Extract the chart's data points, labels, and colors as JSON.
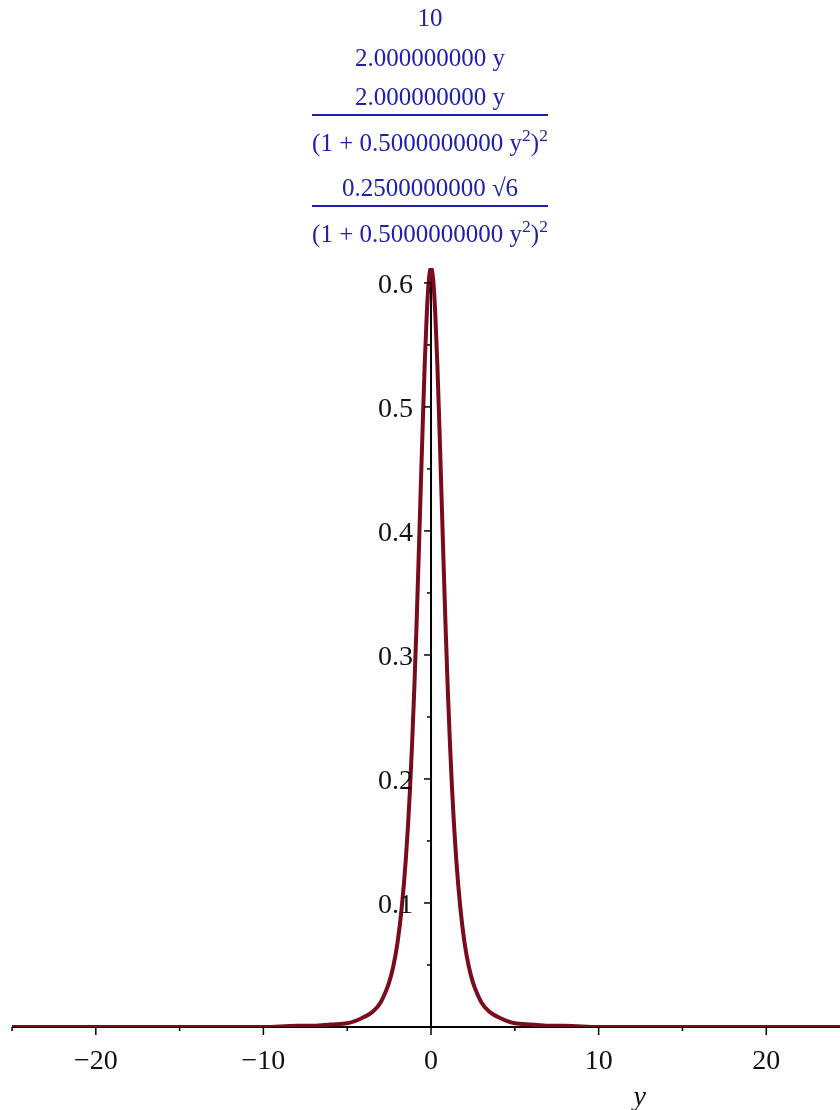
{
  "chart_data": {
    "type": "line",
    "annotations": [
      "10",
      "2.000000000 y",
      "2.000000000 y",
      "(1 + 0.5000000000 y$^{2}$)$^{2}$",
      "0.2500000000 √6",
      "(1 + 0.5000000000 y$^{2}$)$^{2}$"
    ],
    "xlabel": "y",
    "x": [
      -25,
      -20,
      -15,
      -10,
      -8,
      -7,
      -6,
      -5,
      -4,
      -3.5,
      -3,
      -2.75,
      -2.5,
      -2.25,
      -2,
      -1.75,
      -1.5,
      -1.375,
      -1.25,
      -1.125,
      -1,
      -0.875,
      -0.75,
      -0.625,
      -0.5,
      -0.375,
      -0.25,
      -0.125,
      0,
      0.125,
      0.25,
      0.375,
      0.5,
      0.625,
      0.75,
      0.875,
      1,
      1.125,
      1.25,
      1.375,
      1.5,
      1.75,
      2,
      2.25,
      2.5,
      2.75,
      3,
      3.5,
      4,
      5,
      6,
      7,
      8,
      10,
      15,
      20,
      24.4
    ],
    "series": [
      {
        "color": "#7a0b1c",
        "values": [
          0,
          0,
          0,
          0,
          0.001,
          0.001,
          0.002,
          0.003,
          0.008,
          0.012,
          0.02,
          0.027,
          0.036,
          0.049,
          0.068,
          0.096,
          0.136,
          0.162,
          0.193,
          0.23,
          0.272,
          0.32,
          0.373,
          0.429,
          0.484,
          0.535,
          0.576,
          0.603,
          0.612,
          0.603,
          0.576,
          0.535,
          0.484,
          0.429,
          0.373,
          0.32,
          0.272,
          0.23,
          0.193,
          0.162,
          0.136,
          0.096,
          0.068,
          0.049,
          0.036,
          0.027,
          0.02,
          0.012,
          0.008,
          0.003,
          0.002,
          0.001,
          0.001,
          0,
          0,
          0,
          0
        ]
      }
    ],
    "xlim": [
      -25,
      24.4
    ],
    "ylim": [
      0,
      0.612
    ],
    "xticks": [
      {
        "value": -25,
        "label": null
      },
      {
        "value": -20,
        "label": "−20"
      },
      {
        "value": -15,
        "label": null
      },
      {
        "value": -10,
        "label": "−10"
      },
      {
        "value": -5,
        "label": null
      },
      0,
      {
        "value": 5,
        "label": null
      },
      10,
      {
        "value": 15,
        "label": null
      },
      20
    ],
    "yticks": [
      {
        "value": 0.05,
        "label": null
      },
      0.1,
      {
        "value": 0.15,
        "label": null
      },
      0.2,
      {
        "value": 0.25,
        "label": null
      },
      0.3,
      {
        "value": 0.35,
        "label": null
      },
      0.4,
      {
        "value": 0.45,
        "label": null
      },
      0.5,
      {
        "value": 0.55,
        "label": null
      },
      0.6
    ],
    "line_style": "solid"
  }
}
